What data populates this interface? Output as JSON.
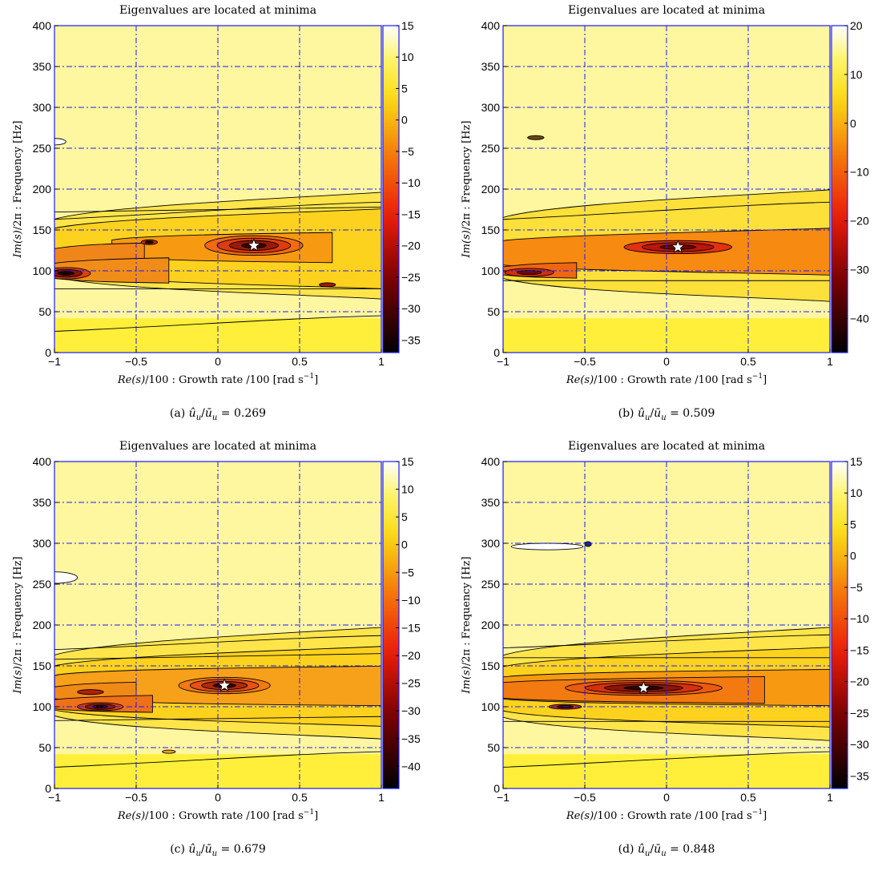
{
  "chart_data": [
    {
      "type": "heatmap",
      "title": "Eigenvalues are located at minima",
      "xlabel_parts": [
        "Re(s)",
        "/100 : Growth rate  /100   [rad s",
        "−1",
        "]"
      ],
      "ylabel_parts": [
        "Im(s)",
        "/2π : Frequency    [Hz]"
      ],
      "xlim": [
        -1,
        1
      ],
      "ylim": [
        0,
        400
      ],
      "xticks": [
        -1,
        -0.5,
        0,
        0.5,
        1
      ],
      "xtick_labels": [
        "−1",
        "−0.5",
        "0",
        "0.5",
        "1"
      ],
      "yticks": [
        0,
        50,
        100,
        150,
        200,
        250,
        300,
        350,
        400
      ],
      "ytick_labels": [
        "0",
        "50",
        "100",
        "150",
        "200",
        "250",
        "300",
        "350",
        "400"
      ],
      "colorbar": {
        "range": [
          -37,
          15
        ],
        "ticks": [
          15,
          10,
          5,
          0,
          -5,
          -10,
          -15,
          -20,
          -25,
          -30,
          -35
        ],
        "tick_labels": [
          "15",
          "10",
          "5",
          "0",
          "−5",
          "−10",
          "−15",
          "−20",
          "−25",
          "−30",
          "−35"
        ]
      },
      "grid": true,
      "eigenvalue": {
        "x": 0.22,
        "y": 131
      },
      "caption": "(a)  û_u/ū_u = 0.269",
      "caption_parts": [
        "(a)  ",
        "û",
        "u",
        "/",
        "ū",
        "u",
        " = 0.269"
      ],
      "bands": [
        {
          "y": 128,
          "hw": 52,
          "color": "#ffe54a",
          "x1": 1.0,
          "taper": 6
        },
        {
          "y": 125,
          "hw": 40,
          "color": "#fdd21e",
          "x1": 1.0,
          "taper": 4
        },
        {
          "y": 128,
          "hw": 16,
          "color": "#f79a12",
          "x0": -0.6,
          "x1": 0.7
        },
        {
          "y": 117,
          "hw": 14,
          "color": "#f0861a",
          "x0": -1.0,
          "x1": -0.45
        },
        {
          "y": 100,
          "hw": 13,
          "color": "#f08c18",
          "x0": -1.0,
          "x1": -0.3
        }
      ],
      "wells": [
        {
          "x": 0.22,
          "y": 131,
          "rx": 0.3,
          "ry": 12,
          "colors": [
            "#f26a12",
            "#dd3c10",
            "#9a1a08",
            "#3a0200"
          ]
        },
        {
          "x": -0.93,
          "y": 97,
          "rx": 0.15,
          "ry": 7,
          "colors": [
            "#e04010",
            "#8a1406",
            "#1a0000"
          ]
        },
        {
          "x": -0.42,
          "y": 135,
          "rx": 0.05,
          "ry": 3,
          "colors": [
            "#c23008",
            "#200000"
          ]
        },
        {
          "x": 0.67,
          "y": 83,
          "rx": 0.05,
          "ry": 2.5,
          "colors": [
            "#a01a04"
          ]
        }
      ],
      "whites": [
        {
          "x": -1.0,
          "y": 258,
          "rx": 0.07,
          "ry": 4
        }
      ],
      "contours": [
        {
          "y0": 26,
          "y1": 45
        },
        {
          "y0": 163,
          "y1": 184
        },
        {
          "y0": 78,
          "y1": 78
        },
        {
          "y0": 172,
          "y1": 178
        }
      ]
    },
    {
      "type": "heatmap",
      "title": "Eigenvalues are located at minima",
      "xlabel_parts": [
        "Re(s)",
        "/100 : Growth rate  /100   [rad s",
        "−1",
        "]"
      ],
      "ylabel_parts": [
        "Im(s)",
        "/2π : Frequency    [Hz]"
      ],
      "xlim": [
        -1,
        1
      ],
      "ylim": [
        0,
        400
      ],
      "xticks": [
        -1,
        -0.5,
        0,
        0.5,
        1
      ],
      "xtick_labels": [
        "−1",
        "−0.5",
        "0",
        "0.5",
        "1"
      ],
      "yticks": [
        0,
        50,
        100,
        150,
        200,
        250,
        300,
        350,
        400
      ],
      "ytick_labels": [
        "0",
        "50",
        "100",
        "150",
        "200",
        "250",
        "300",
        "350",
        "400"
      ],
      "colorbar": {
        "range": [
          -47,
          20
        ],
        "ticks": [
          20,
          10,
          0,
          -10,
          -20,
          -30,
          -40
        ],
        "tick_labels": [
          "20",
          "10",
          "0",
          "−10",
          "−20",
          "−30",
          "−40"
        ]
      },
      "grid": true,
      "eigenvalue": {
        "x": 0.07,
        "y": 129
      },
      "caption": "(b)  û_u/ū_u = 0.509",
      "caption_parts": [
        "(b)  ",
        "û",
        "u",
        "/",
        "ū",
        "u",
        " = 0.509"
      ],
      "bands": [
        {
          "y": 128,
          "hw": 55,
          "color": "#fde03a",
          "x1": 1.0,
          "taper": 6
        },
        {
          "y": 122,
          "hw": 22,
          "color": "#f78a10",
          "x1": 1.0,
          "taper": 3
        },
        {
          "y": 100,
          "hw": 7,
          "color": "#ee6512",
          "x0": -1.0,
          "x1": -0.55
        }
      ],
      "wells": [
        {
          "x": 0.07,
          "y": 129,
          "rx": 0.33,
          "ry": 8,
          "colors": [
            "#e23010",
            "#b8180a",
            "#6a0804"
          ]
        },
        {
          "x": -0.84,
          "y": 98,
          "rx": 0.15,
          "ry": 5,
          "colors": [
            "#d42e0c",
            "#6a0a02"
          ]
        },
        {
          "x": -0.8,
          "y": 263,
          "rx": 0.05,
          "ry": 2.5,
          "colors": [
            "#6a4a10"
          ]
        }
      ],
      "whites": [],
      "contours": [
        {
          "y0": 163,
          "y1": 184
        },
        {
          "y0": 88,
          "y1": 88
        }
      ]
    },
    {
      "type": "heatmap",
      "title": "Eigenvalues are located at minima",
      "xlabel_parts": [
        "Re(s)",
        "/100 : Growth rate  /100   [rad s",
        "−1",
        "]"
      ],
      "ylabel_parts": [
        "Im(s)",
        "/2π : Frequency    [Hz]"
      ],
      "xlim": [
        -1,
        1
      ],
      "ylim": [
        0,
        400
      ],
      "xticks": [
        -1,
        -0.5,
        0,
        0.5,
        1
      ],
      "xtick_labels": [
        "−1",
        "−0.5",
        "0",
        "0.5",
        "1"
      ],
      "yticks": [
        0,
        50,
        100,
        150,
        200,
        250,
        300,
        350,
        400
      ],
      "ytick_labels": [
        "0",
        "50",
        "100",
        "150",
        "200",
        "250",
        "300",
        "350",
        "400"
      ],
      "colorbar": {
        "range": [
          -44,
          15
        ],
        "ticks": [
          15,
          10,
          5,
          0,
          -5,
          -10,
          -15,
          -20,
          -25,
          -30,
          -35,
          -40
        ],
        "tick_labels": [
          "15",
          "10",
          "5",
          "0",
          "−5",
          "−10",
          "−15",
          "−20",
          "−25",
          "−30",
          "−35",
          "−40"
        ]
      },
      "grid": true,
      "eigenvalue": {
        "x": 0.04,
        "y": 126
      },
      "caption": "(c)  û_u/ū_u = 0.679",
      "caption_parts": [
        "(c)  ",
        "û",
        "u",
        "/",
        "ū",
        "u",
        " = 0.679"
      ],
      "bands": [
        {
          "y": 126,
          "hw": 55,
          "color": "#ffe54a",
          "x1": 1.0,
          "taper": 6
        },
        {
          "y": 123,
          "hw": 40,
          "color": "#fdd21e",
          "x1": 1.0,
          "taper": 4
        },
        {
          "y": 125,
          "hw": 22,
          "color": "#f7a01a",
          "x0": -0.95,
          "x1": 1.0
        },
        {
          "y": 117,
          "hw": 10,
          "color": "#f08a16",
          "x0": -1.0,
          "x1": -0.5
        },
        {
          "y": 103,
          "hw": 8,
          "color": "#ee7018",
          "x0": -1.0,
          "x1": -0.4
        }
      ],
      "wells": [
        {
          "x": 0.04,
          "y": 126,
          "rx": 0.28,
          "ry": 10,
          "colors": [
            "#f27a12",
            "#e8501a",
            "#b02a0a",
            "#3a0200"
          ]
        },
        {
          "x": -0.72,
          "y": 100,
          "rx": 0.14,
          "ry": 5,
          "colors": [
            "#e04412",
            "#9a1a06",
            "#200000"
          ]
        },
        {
          "x": -0.78,
          "y": 118,
          "rx": 0.08,
          "ry": 3,
          "colors": [
            "#b02008"
          ]
        },
        {
          "x": -0.3,
          "y": 45,
          "rx": 0.04,
          "ry": 2,
          "colors": [
            "#f6a022"
          ]
        }
      ],
      "whites": [
        {
          "x": -1.0,
          "y": 258,
          "rx": 0.14,
          "ry": 7
        }
      ],
      "contours": [
        {
          "y0": 26,
          "y1": 45
        },
        {
          "y0": 170,
          "y1": 187
        },
        {
          "y0": 83,
          "y1": 88
        },
        {
          "y0": 158,
          "y1": 165
        }
      ]
    },
    {
      "type": "heatmap",
      "title": "Eigenvalues are located at minima",
      "xlabel_parts": [
        "Re(s)",
        "/100 : Growth rate  /100   [rad s",
        "−1",
        "]"
      ],
      "ylabel_parts": [
        "Im(s)",
        "/2π : Frequency    [Hz]"
      ],
      "xlim": [
        -1,
        1
      ],
      "ylim": [
        0,
        400
      ],
      "xticks": [
        -1,
        -0.5,
        0,
        0.5,
        1
      ],
      "xtick_labels": [
        "−1",
        "−0.5",
        "0",
        "0.5",
        "1"
      ],
      "yticks": [
        0,
        50,
        100,
        150,
        200,
        250,
        300,
        350,
        400
      ],
      "ytick_labels": [
        "0",
        "50",
        "100",
        "150",
        "200",
        "250",
        "300",
        "350",
        "400"
      ],
      "colorbar": {
        "range": [
          -37,
          15
        ],
        "ticks": [
          15,
          10,
          5,
          0,
          -5,
          -10,
          -15,
          -20,
          -25,
          -30,
          -35
        ],
        "tick_labels": [
          "15",
          "10",
          "5",
          "0",
          "−5",
          "−10",
          "−15",
          "−20",
          "−25",
          "−30",
          "−35"
        ]
      },
      "grid": true,
      "eigenvalue": {
        "x": -0.14,
        "y": 123
      },
      "caption": "(d)  û_u/ū_u = 0.848",
      "caption_parts": [
        "(d)  ",
        "û",
        "u",
        "/",
        "ū",
        "u",
        " = 0.848"
      ],
      "bands": [
        {
          "y": 125,
          "hw": 56,
          "color": "#ffe54a",
          "x1": 1.0,
          "taper": 6
        },
        {
          "y": 122,
          "hw": 40,
          "color": "#fdd21e",
          "x1": 1.0,
          "taper": 4
        },
        {
          "y": 123,
          "hw": 20,
          "color": "#f79a12",
          "x0": -1.0,
          "x1": 1.0
        },
        {
          "y": 120,
          "hw": 14,
          "color": "#f27a10",
          "x0": -1.0,
          "x1": 0.6
        }
      ],
      "wells": [
        {
          "x": -0.14,
          "y": 123,
          "rx": 0.48,
          "ry": 9,
          "colors": [
            "#ec5a10",
            "#d8300e",
            "#8a1608",
            "#300200"
          ]
        },
        {
          "x": -0.62,
          "y": 100,
          "rx": 0.1,
          "ry": 3,
          "colors": [
            "#d0300c",
            "#401000"
          ]
        },
        {
          "x": -0.48,
          "y": 299,
          "rx": 0.02,
          "ry": 3,
          "colors": [
            "#1a2a7a"
          ]
        }
      ],
      "whites": [
        {
          "x": -0.73,
          "y": 296,
          "rx": 0.22,
          "ry": 4
        }
      ],
      "contours": [
        {
          "y0": 26,
          "y1": 45
        },
        {
          "y0": 172,
          "y1": 188
        },
        {
          "y0": 82,
          "y1": 82
        },
        {
          "y0": 160,
          "y1": 160
        }
      ]
    }
  ]
}
